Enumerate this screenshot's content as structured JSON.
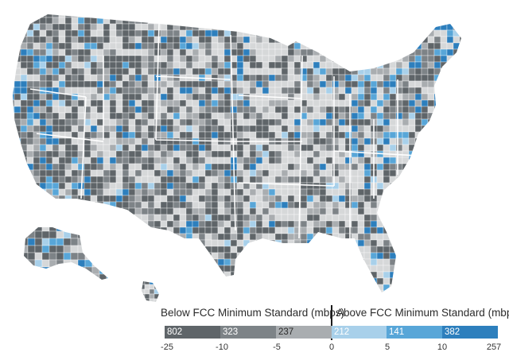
{
  "map": {
    "region": "Contiguous United States, Alaska and Hawaii, county level",
    "colors": {
      "below_dark": "#5f6569",
      "below_mid": "#7d8387",
      "below_light": "#a9adb0",
      "neutral": "#d6d8d9",
      "above_light": "#a8d0ea",
      "above_mid": "#58a6d8",
      "above_dark": "#2d7fbd",
      "border": "#ffffff"
    }
  },
  "legend": {
    "below_title": "Below FCC Minimum Standard (mbps)",
    "above_title": "Above FCC Minimum Standard (mbps)",
    "segments": [
      {
        "count": "802",
        "color": "#5f6569",
        "text_color": "#ffffff"
      },
      {
        "count": "323",
        "color": "#7d8387",
        "text_color": "#ffffff"
      },
      {
        "count": "237",
        "color": "#a9adb0",
        "text_color": "#2b2b2b"
      },
      {
        "count": "212",
        "color": "#a8d0ea",
        "text_color": "#ffffff"
      },
      {
        "count": "141",
        "color": "#58a6d8",
        "text_color": "#ffffff"
      },
      {
        "count": "382",
        "color": "#2d7fbd",
        "text_color": "#ffffff"
      }
    ],
    "ticks": [
      "-25",
      "-10",
      "-5",
      "0",
      "5",
      "10",
      "257"
    ]
  }
}
